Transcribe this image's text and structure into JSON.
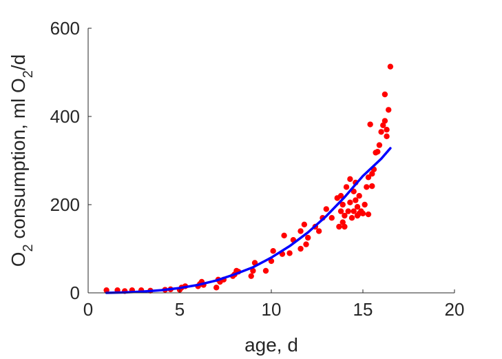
{
  "chart_data": {
    "type": "scatter",
    "xlabel": "age, d",
    "ylabel": "O2 consumption, ml O2/d",
    "xlim": [
      0,
      20
    ],
    "ylim": [
      0,
      600
    ],
    "xticks": [
      0,
      5,
      10,
      15,
      20
    ],
    "yticks": [
      0,
      200,
      400,
      600
    ],
    "grid": false,
    "colors": {
      "points": "#ff0000",
      "fit": "#0000ff",
      "axes": "#262626"
    },
    "series": [
      {
        "kind": "points",
        "x": [
          1.0,
          1.6,
          2.0,
          2.4,
          2.9,
          3.4,
          4.2,
          4.5,
          5.0,
          5.1,
          5.3,
          6.0,
          6.1,
          6.2,
          6.3,
          7.0,
          7.1,
          7.2,
          7.4,
          7.9,
          8.0,
          8.1,
          8.2,
          8.9,
          9.0,
          9.1,
          9.7,
          10.0,
          10.1,
          10.6,
          10.7,
          11.0,
          11.2,
          11.6,
          11.6,
          11.8,
          11.9,
          12.0,
          12.4,
          12.6,
          12.8,
          13.0,
          13.3,
          13.6,
          13.7,
          13.8,
          13.8,
          13.9,
          13.9,
          14.0,
          14.0,
          14.1,
          14.2,
          14.3,
          14.3,
          14.4,
          14.5,
          14.5,
          14.6,
          14.6,
          14.7,
          14.7,
          14.8,
          14.8,
          14.9,
          15.0,
          15.1,
          15.2,
          15.3,
          15.3,
          15.4,
          15.5,
          15.5,
          15.6,
          15.7,
          15.8,
          15.9,
          16.0,
          16.1,
          16.2,
          16.2,
          16.3,
          16.3,
          16.4,
          16.5
        ],
        "y": [
          6,
          6,
          4,
          6,
          6,
          5,
          7,
          8,
          7,
          12,
          15,
          15,
          20,
          25,
          18,
          12,
          30,
          25,
          30,
          38,
          42,
          50,
          48,
          38,
          50,
          68,
          50,
          72,
          95,
          88,
          130,
          90,
          120,
          100,
          140,
          155,
          110,
          125,
          150,
          140,
          170,
          190,
          170,
          215,
          150,
          185,
          220,
          160,
          200,
          150,
          175,
          240,
          185,
          205,
          258,
          170,
          230,
          185,
          210,
          250,
          175,
          195,
          180,
          220,
          185,
          180,
          200,
          240,
          178,
          262,
          382,
          242,
          270,
          280,
          318,
          320,
          335,
          365,
          380,
          390,
          450,
          370,
          355,
          415,
          513
        ]
      },
      {
        "kind": "fit",
        "x": [
          1,
          2,
          3,
          4,
          5,
          6,
          7,
          8,
          9,
          10,
          11,
          12,
          13,
          14,
          15,
          16,
          16.5
        ],
        "y": [
          0,
          1,
          3,
          6,
          11,
          18,
          28,
          42,
          58,
          80,
          106,
          137,
          174,
          217,
          265,
          304,
          328
        ]
      }
    ]
  }
}
